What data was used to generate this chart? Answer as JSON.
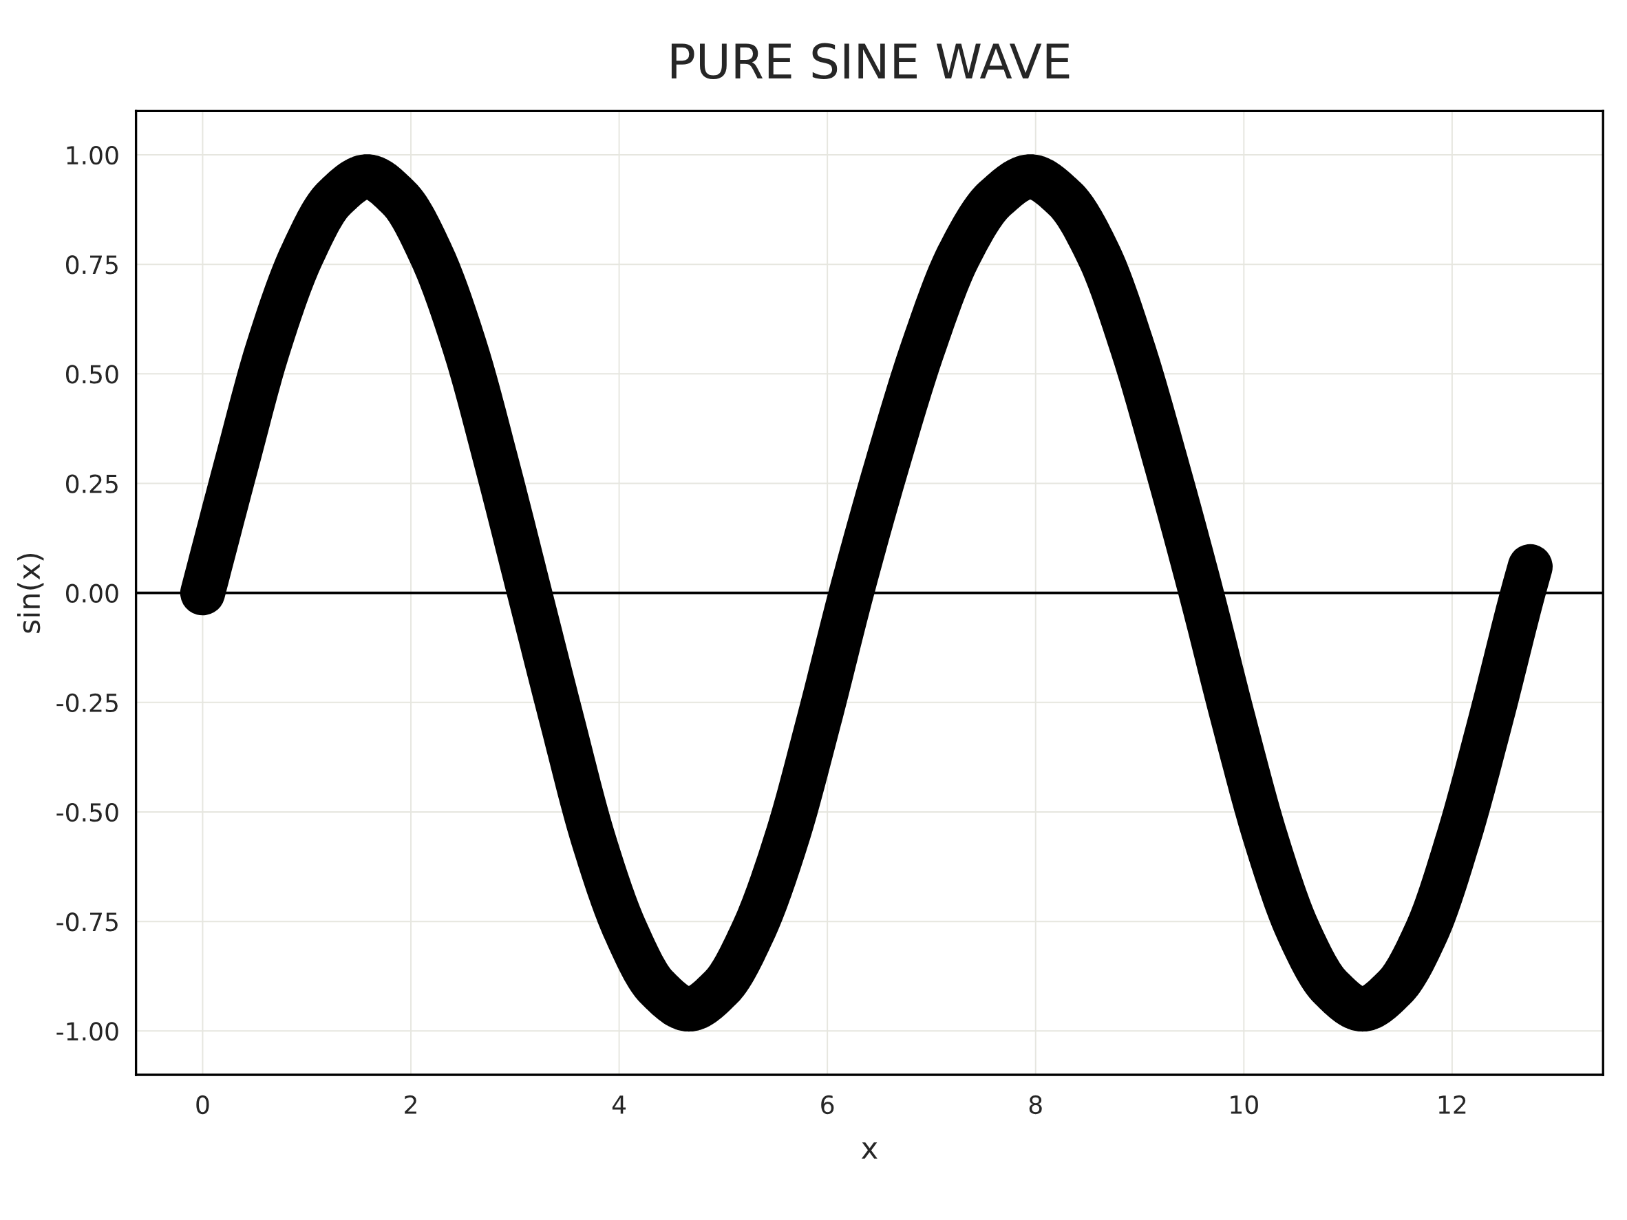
{
  "chart_data": {
    "type": "line",
    "title": "PURE SINE WAVE",
    "xlabel": "x",
    "ylabel": "sin(x)",
    "x": [
      0,
      0.32,
      0.63,
      0.95,
      1.26,
      1.58,
      1.89,
      2.2,
      2.52,
      2.83,
      3.14,
      3.45,
      3.75,
      4.06,
      4.36,
      4.67,
      4.98,
      5.29,
      5.61,
      5.92,
      6.23,
      6.57,
      6.92,
      7.26,
      7.61,
      7.95,
      8.28,
      8.61,
      8.93,
      9.26,
      9.59,
      9.9,
      10.21,
      10.52,
      10.83,
      11.14,
      11.45,
      11.76,
      12.06,
      12.37,
      12.68,
      12.75
    ],
    "series": [
      {
        "color": "#000000",
        "values": [
          0.0,
          0.29,
          0.56,
          0.77,
          0.9,
          0.95,
          0.9,
          0.77,
          0.56,
          0.29,
          0.0,
          -0.29,
          -0.56,
          -0.77,
          -0.9,
          -0.95,
          -0.9,
          -0.77,
          -0.56,
          -0.29,
          0.0,
          0.29,
          0.56,
          0.77,
          0.9,
          0.95,
          0.9,
          0.77,
          0.56,
          0.29,
          0.0,
          -0.29,
          -0.56,
          -0.77,
          -0.9,
          -0.95,
          -0.9,
          -0.77,
          -0.56,
          -0.29,
          0.0,
          0.06
        ]
      }
    ],
    "xlim": [
      -0.64,
      13.45
    ],
    "ylim": [
      -1.1,
      1.1
    ],
    "xticks": [
      0,
      2,
      4,
      6,
      8,
      10,
      12
    ],
    "yticks": [
      {
        "value": -1,
        "label": "-1.00"
      },
      {
        "value": -0.75,
        "label": "-0.75"
      },
      {
        "value": -0.5,
        "label": "-0.50"
      },
      {
        "value": -0.25,
        "label": "-0.25"
      },
      {
        "value": 0,
        "label": "0.00"
      },
      {
        "value": 0.25,
        "label": "0.25"
      },
      {
        "value": 0.5,
        "label": "0.50"
      },
      {
        "value": 0.75,
        "label": "0.75"
      },
      {
        "value": 1,
        "label": "1.00"
      }
    ],
    "ref_lines": [
      {
        "axis": "y",
        "value": 0,
        "color": "#000000"
      }
    ],
    "grid": true,
    "line_style": "solid"
  }
}
